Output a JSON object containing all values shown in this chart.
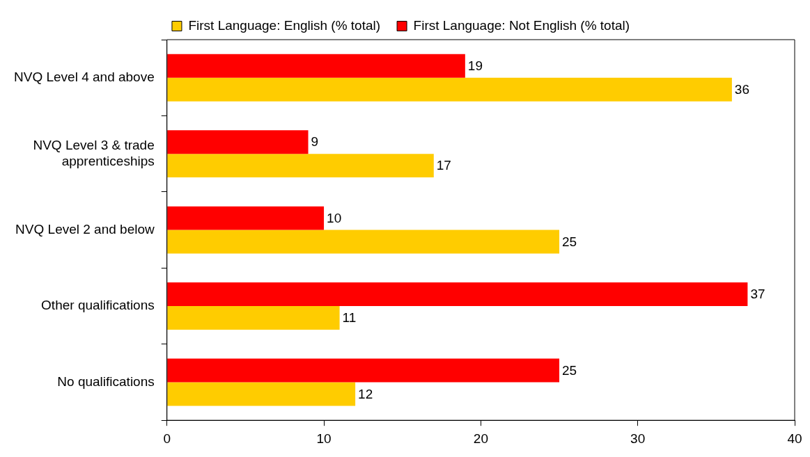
{
  "chart_data": {
    "type": "bar",
    "orientation": "horizontal",
    "categories": [
      "NVQ Level 4 and above",
      "NVQ Level 3 & trade apprenticeships",
      "NVQ Level 2 and below",
      "Other qualifications",
      "No qualifications"
    ],
    "series": [
      {
        "name": "First Language: English (% total)",
        "color": "#ffcc00",
        "values": [
          36,
          17,
          25,
          11,
          12
        ]
      },
      {
        "name": "First Language: Not English (% total)",
        "color": "#ff0000",
        "values": [
          19,
          9,
          10,
          37,
          25
        ]
      }
    ],
    "xlim": [
      0,
      40
    ],
    "xticks": [
      0,
      10,
      20,
      30,
      40
    ],
    "grid": false,
    "legend": "top",
    "data_labels": true
  }
}
